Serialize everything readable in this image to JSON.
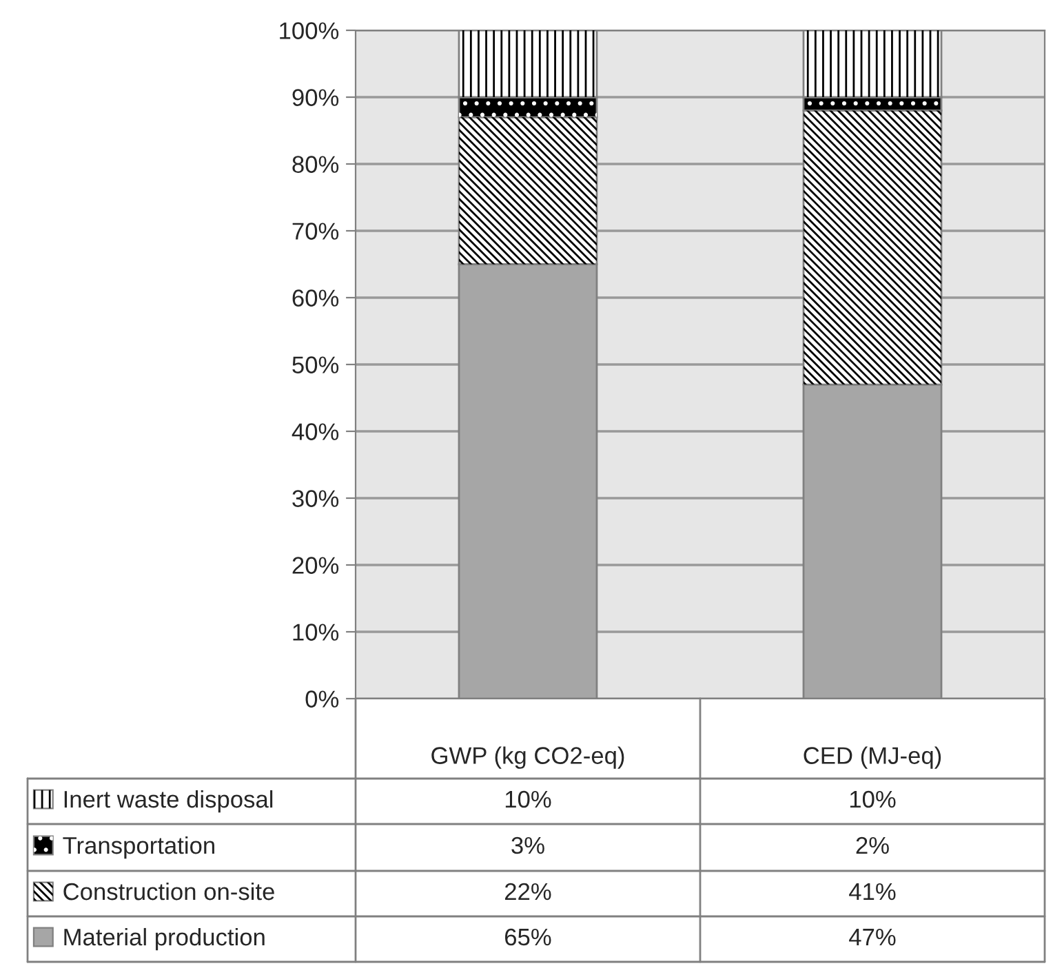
{
  "chart_data": {
    "type": "bar",
    "stacked": true,
    "categories": [
      "GWP (kg CO2-eq)",
      "CED (MJ-eq)"
    ],
    "series": [
      {
        "name": "Material production",
        "color": "#a6a6a6",
        "values": [
          65,
          47
        ],
        "value_labels": [
          "65%",
          "47%"
        ]
      },
      {
        "name": "Construction on-site",
        "color": "#ffffff",
        "values": [
          22,
          41
        ],
        "value_labels": [
          "22%",
          "41%"
        ]
      },
      {
        "name": "Transportation",
        "color": "#000000",
        "values": [
          3,
          2
        ],
        "value_labels": [
          "3%",
          "2%"
        ]
      },
      {
        "name": "Inert waste disposal",
        "color": "#ffffff",
        "values": [
          10,
          10
        ],
        "value_labels": [
          "10%",
          "10%"
        ]
      }
    ],
    "ylim": [
      0,
      100
    ],
    "yticks": [
      {
        "value": 0,
        "label": "0%"
      },
      {
        "value": 10,
        "label": "10%"
      },
      {
        "value": 20,
        "label": "20%"
      },
      {
        "value": 30,
        "label": "30%"
      },
      {
        "value": 40,
        "label": "40%"
      },
      {
        "value": 50,
        "label": "50%"
      },
      {
        "value": 60,
        "label": "60%"
      },
      {
        "value": 70,
        "label": "70%"
      },
      {
        "value": 80,
        "label": "80%"
      },
      {
        "value": 90,
        "label": "90%"
      },
      {
        "value": 100,
        "label": "100%"
      }
    ],
    "grid": "y",
    "legend": "bottom"
  }
}
